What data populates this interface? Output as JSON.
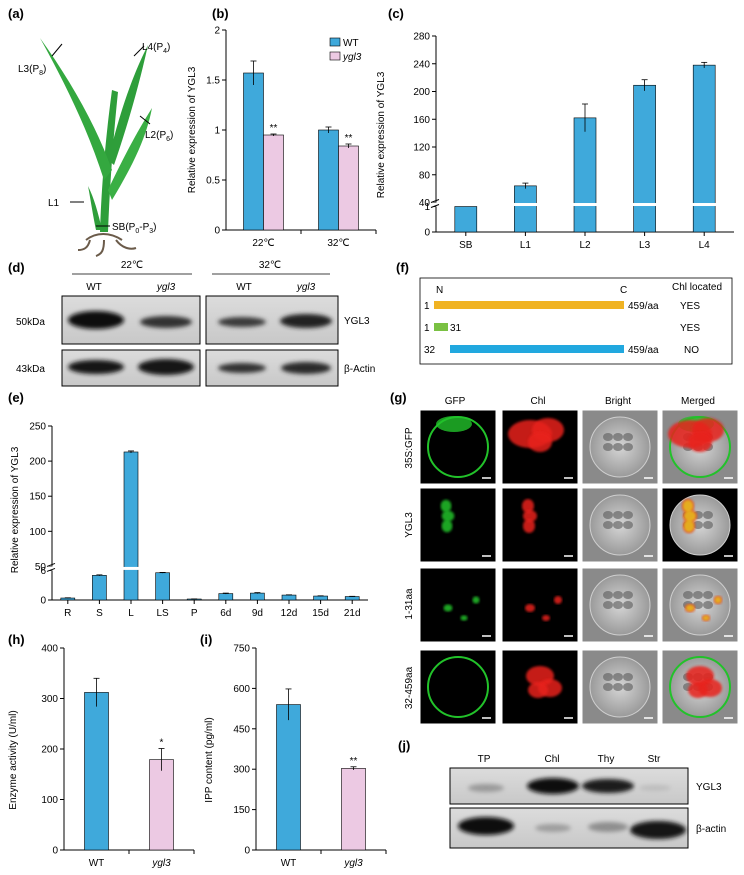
{
  "colors": {
    "wt": "#3fa9db",
    "ygl3": "#ecc9e3",
    "bar_edge": "#000000",
    "full_length": "#f0b323",
    "transit_peptide": "#7ac143",
    "mature": "#21a8df",
    "leaf": "#2e9e3a",
    "gfp": "#22c22a",
    "chl": "#e8201c"
  },
  "panels": {
    "a": {
      "label": "(a)",
      "leaf_labels": [
        "L3(P",
        "L4(P",
        "L2(P",
        "L1",
        "SB(P"
      ],
      "subscripts": [
        "8",
        "4",
        "6",
        "0",
        "3"
      ],
      "sb_range_sep": "-P"
    },
    "b": {
      "label": "(b)"
    },
    "c": {
      "label": "(c)"
    },
    "d": {
      "label": "(d)",
      "temps": [
        "22℃",
        "32℃"
      ],
      "lanes": [
        "WT",
        "ygl3",
        "WT",
        "ygl3"
      ],
      "sizes": [
        "50kDa",
        "43kDa"
      ],
      "proteins": [
        "YGL3",
        "β-Actin"
      ]
    },
    "e": {
      "label": "(e)"
    },
    "f": {
      "label": "(f)",
      "n_term": "N",
      "c_term": "C",
      "column_header": "Chl located",
      "constructs": [
        {
          "start": "1",
          "end": "459/aa",
          "located": "YES"
        },
        {
          "start": "1",
          "end": "31",
          "located": "YES"
        },
        {
          "start": "32",
          "end": "459/aa",
          "located": "NO"
        }
      ]
    },
    "g": {
      "label": "(g)",
      "columns": [
        "GFP",
        "Chl",
        "Bright",
        "Merged"
      ],
      "rows": [
        "35S:GFP",
        "YGL3",
        "1-31aa",
        "32-459aa"
      ]
    },
    "h": {
      "label": "(h)"
    },
    "i": {
      "label": "(i)"
    },
    "j": {
      "label": "(j)",
      "lanes": [
        "TP",
        "Chl",
        "Thy",
        "Str"
      ],
      "proteins": [
        "YGL3",
        "β-actin"
      ]
    }
  },
  "chart_data": [
    {
      "id": "b",
      "type": "bar",
      "ylabel": "Relative expression of YGL3",
      "categories": [
        "22℃",
        "32℃"
      ],
      "series": [
        {
          "name": "WT",
          "values": [
            1.57,
            1.0
          ],
          "errors": [
            0.12,
            0.03
          ]
        },
        {
          "name": "ygl3",
          "values": [
            0.95,
            0.84
          ],
          "errors": [
            0.01,
            0.02
          ]
        }
      ],
      "significance": [
        "**",
        "**"
      ],
      "ylim": [
        0,
        2
      ],
      "yticks": [
        "0",
        "0.5",
        "1",
        "1.5",
        "2"
      ],
      "legend": "top-right"
    },
    {
      "id": "c",
      "type": "bar",
      "ylabel": "Relative expression of YGL3",
      "categories": [
        "SB",
        "L1",
        "L2",
        "L3",
        "L4"
      ],
      "values": [
        1,
        64,
        162,
        209,
        238
      ],
      "errors": [
        0,
        4,
        20,
        8,
        4
      ],
      "yticks": [
        "0",
        "1",
        "40",
        "80",
        "120",
        "160",
        "200",
        "240",
        "280"
      ],
      "axis_break": "between 1 and 40"
    },
    {
      "id": "e",
      "type": "bar",
      "ylabel": "Relative expression of YGL3",
      "categories": [
        "R",
        "S",
        "L",
        "LS",
        "P",
        "6d",
        "9d",
        "12d",
        "15d",
        "21d"
      ],
      "values": [
        0.4,
        5,
        213,
        41,
        0.2,
        1.3,
        1.4,
        1.0,
        0.8,
        0.7
      ],
      "errors": [
        0.05,
        0.1,
        1.5,
        0.5,
        0.02,
        0.1,
        0.1,
        0.05,
        0.05,
        0.05
      ],
      "yticks": [
        "0",
        "6",
        "50",
        "100",
        "150",
        "200",
        "250"
      ],
      "axis_break": "between 6 and 50"
    },
    {
      "id": "h",
      "type": "bar",
      "ylabel": "Enzyme activity (U/ml)",
      "categories": [
        "WT",
        "ygl3"
      ],
      "values": [
        312,
        179
      ],
      "errors": [
        28,
        22
      ],
      "significance": [
        "",
        "*"
      ],
      "ylim": [
        0,
        400
      ],
      "yticks": [
        "0",
        "100",
        "200",
        "300",
        "400"
      ]
    },
    {
      "id": "i",
      "type": "bar",
      "ylabel": "IPP content (pg/ml)",
      "categories": [
        "WT",
        "ygl3"
      ],
      "values": [
        540,
        303
      ],
      "errors": [
        58,
        6
      ],
      "significance": [
        "",
        "**"
      ],
      "ylim": [
        0,
        750
      ],
      "yticks": [
        "0",
        "150",
        "300",
        "450",
        "600",
        "750"
      ]
    }
  ]
}
